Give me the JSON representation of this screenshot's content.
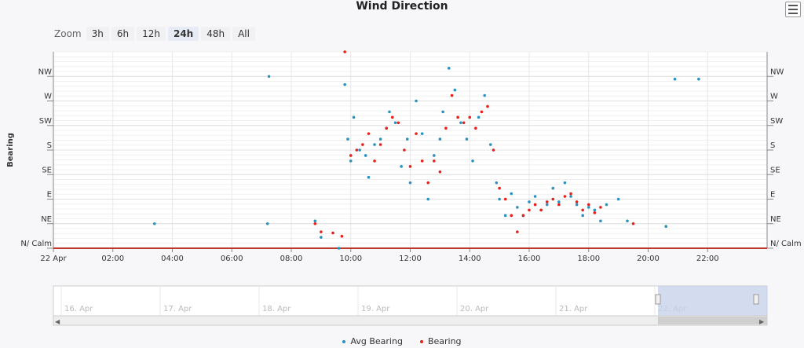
{
  "title": "Wind Direction",
  "zoom": {
    "label": "Zoom",
    "options": [
      "3h",
      "6h",
      "12h",
      "24h",
      "48h",
      "All"
    ],
    "active": "24h"
  },
  "legend": [
    {
      "name": "Avg Bearing",
      "color": "#2a92c0"
    },
    {
      "name": "Bearing",
      "color": "#e8201c"
    }
  ],
  "navigator": {
    "labels": [
      "16. Apr",
      "17. Apr",
      "18. Apr",
      "19. Apr",
      "20. Apr",
      "21. Apr",
      "22. Apr"
    ]
  },
  "chart_data": {
    "type": "scatter",
    "title": "Wind Direction",
    "ylabel": "Bearing",
    "y_ticks": [
      "N/ Calm",
      "NE",
      "E",
      "SE",
      "S",
      "SW",
      "W",
      "NW"
    ],
    "ylim": [
      0,
      360
    ],
    "x_ticks": [
      "22 Apr",
      "02:00",
      "04:00",
      "06:00",
      "08:00",
      "10:00",
      "12:00",
      "14:00",
      "16:00",
      "18:00",
      "20:00",
      "22:00"
    ],
    "xlim_hours": [
      0,
      24
    ],
    "series": [
      {
        "name": "Avg Bearing",
        "color": "#2a92c0",
        "points": [
          [
            3.4,
            45
          ],
          [
            7.2,
            45
          ],
          [
            7.25,
            315
          ],
          [
            8.8,
            50
          ],
          [
            9.0,
            20
          ],
          [
            9.6,
            0
          ],
          [
            9.8,
            300
          ],
          [
            9.9,
            200
          ],
          [
            10.0,
            160
          ],
          [
            10.1,
            240
          ],
          [
            10.3,
            180
          ],
          [
            10.5,
            170
          ],
          [
            10.6,
            130
          ],
          [
            10.8,
            190
          ],
          [
            11.0,
            200
          ],
          [
            11.2,
            220
          ],
          [
            11.3,
            250
          ],
          [
            11.5,
            230
          ],
          [
            11.7,
            150
          ],
          [
            11.9,
            200
          ],
          [
            12.0,
            120
          ],
          [
            12.2,
            270
          ],
          [
            12.4,
            210
          ],
          [
            12.6,
            90
          ],
          [
            12.8,
            170
          ],
          [
            13.0,
            200
          ],
          [
            13.1,
            250
          ],
          [
            13.3,
            330
          ],
          [
            13.5,
            290
          ],
          [
            13.7,
            230
          ],
          [
            13.9,
            200
          ],
          [
            14.1,
            160
          ],
          [
            14.3,
            240
          ],
          [
            14.5,
            280
          ],
          [
            14.7,
            190
          ],
          [
            14.9,
            120
          ],
          [
            15.0,
            90
          ],
          [
            15.2,
            60
          ],
          [
            15.4,
            100
          ],
          [
            15.6,
            75
          ],
          [
            15.8,
            60
          ],
          [
            16.0,
            85
          ],
          [
            16.2,
            95
          ],
          [
            16.4,
            70
          ],
          [
            16.6,
            80
          ],
          [
            16.8,
            110
          ],
          [
            17.0,
            85
          ],
          [
            17.2,
            120
          ],
          [
            17.4,
            95
          ],
          [
            17.6,
            80
          ],
          [
            17.8,
            60
          ],
          [
            18.0,
            75
          ],
          [
            18.2,
            70
          ],
          [
            18.4,
            50
          ],
          [
            18.6,
            80
          ],
          [
            19.0,
            90
          ],
          [
            19.3,
            50
          ],
          [
            20.6,
            40
          ],
          [
            20.9,
            310
          ],
          [
            21.7,
            310
          ]
        ]
      },
      {
        "name": "Bearing",
        "color": "#e8201c",
        "points": [
          [
            8.8,
            45
          ],
          [
            9.0,
            30
          ],
          [
            9.4,
            28
          ],
          [
            9.7,
            22
          ],
          [
            9.8,
            360
          ],
          [
            10.0,
            170
          ],
          [
            10.2,
            180
          ],
          [
            10.4,
            190
          ],
          [
            10.6,
            210
          ],
          [
            10.8,
            160
          ],
          [
            11.0,
            190
          ],
          [
            11.2,
            220
          ],
          [
            11.4,
            240
          ],
          [
            11.6,
            230
          ],
          [
            11.8,
            180
          ],
          [
            12.0,
            150
          ],
          [
            12.2,
            210
          ],
          [
            12.4,
            160
          ],
          [
            12.6,
            120
          ],
          [
            12.8,
            160
          ],
          [
            13.0,
            140
          ],
          [
            13.2,
            220
          ],
          [
            13.4,
            280
          ],
          [
            13.6,
            240
          ],
          [
            13.8,
            230
          ],
          [
            14.0,
            240
          ],
          [
            14.2,
            220
          ],
          [
            14.4,
            250
          ],
          [
            14.6,
            260
          ],
          [
            14.8,
            180
          ],
          [
            15.0,
            110
          ],
          [
            15.2,
            90
          ],
          [
            15.4,
            60
          ],
          [
            15.6,
            30
          ],
          [
            15.8,
            60
          ],
          [
            16.0,
            70
          ],
          [
            16.2,
            80
          ],
          [
            16.4,
            70
          ],
          [
            16.6,
            85
          ],
          [
            16.8,
            90
          ],
          [
            17.0,
            80
          ],
          [
            17.2,
            95
          ],
          [
            17.4,
            100
          ],
          [
            17.6,
            85
          ],
          [
            17.8,
            70
          ],
          [
            18.0,
            80
          ],
          [
            18.2,
            65
          ],
          [
            18.4,
            75
          ],
          [
            19.5,
            45
          ]
        ]
      }
    ]
  }
}
